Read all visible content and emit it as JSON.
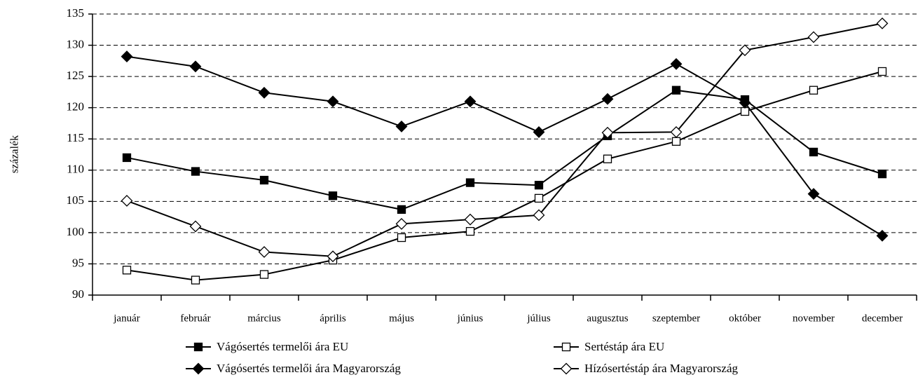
{
  "chart_data": {
    "type": "line",
    "y_label": "százalék",
    "categories": [
      "január",
      "február",
      "március",
      "április",
      "május",
      "június",
      "július",
      "augusztus",
      "szeptember",
      "október",
      "november",
      "december"
    ],
    "series": [
      {
        "name": "Vágósertés termelői ára EU",
        "color": "#000000",
        "marker": "square",
        "marker_fill": "#000000",
        "values": [
          112,
          109.8,
          108.4,
          105.9,
          103.7,
          108,
          107.6,
          115.5,
          122.8,
          121.3,
          112.9,
          109.4
        ]
      },
      {
        "name": "Sertéstáp ára EU",
        "color": "#000000",
        "marker": "square",
        "marker_fill": "#ffffff",
        "values": [
          94,
          92.4,
          93.3,
          95.6,
          99.2,
          100.2,
          105.5,
          111.8,
          114.6,
          119.4,
          122.8,
          125.8
        ]
      },
      {
        "name": "Vágósertés termelői ára Magyarország",
        "color": "#000000",
        "marker": "diamond",
        "marker_fill": "#000000",
        "values": [
          128.2,
          126.6,
          122.4,
          121,
          117,
          121,
          116.1,
          121.4,
          127,
          120.8,
          106.2,
          99.5
        ]
      },
      {
        "name": "Hízósertéstáp ára Magyarország",
        "color": "#000000",
        "marker": "diamond",
        "marker_fill": "#ffffff",
        "values": [
          105.1,
          101,
          96.9,
          96.2,
          101.4,
          102.1,
          102.8,
          116,
          116.1,
          129.2,
          131.3,
          133.5
        ]
      }
    ],
    "ylim": [
      90,
      135
    ],
    "yticks": [
      90,
      95,
      100,
      105,
      110,
      115,
      120,
      125,
      130,
      135
    ],
    "grid": true,
    "legend_position": "bottom"
  }
}
